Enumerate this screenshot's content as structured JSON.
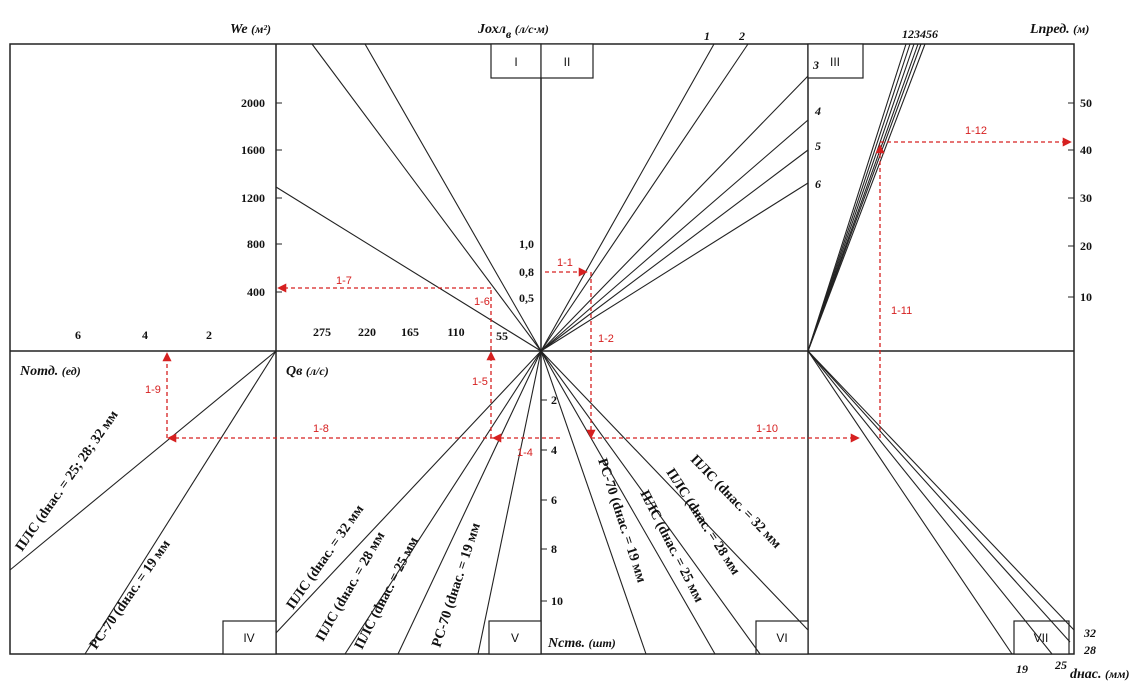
{
  "axes": {
    "We": {
      "text": "We",
      "unit": "(м²)"
    },
    "Joxn": {
      "text": "Jохл",
      "sub": "в",
      "unit": "(л/с·м)"
    },
    "Lpred": {
      "text": "Lпред.",
      "unit": "(м)"
    },
    "Notd": {
      "text": "Nотд.",
      "unit": "(ед)"
    },
    "Qe": {
      "text": "Qв",
      "unit": "(л/с)"
    },
    "Nstv": {
      "text": "Nств.",
      "unit": "(шт)"
    },
    "dnas": {
      "text": "dнас.",
      "unit": "(мм)"
    }
  },
  "quadrants": [
    "I",
    "II",
    "III",
    "IV",
    "V",
    "VI",
    "VII"
  ],
  "ticks": {
    "we": [
      "2000",
      "1600",
      "1200",
      "800",
      "400"
    ],
    "joxn": [
      "1,0",
      "0,8",
      "0,5"
    ],
    "lpred": [
      "50",
      "40",
      "30",
      "20",
      "10"
    ],
    "notd": [
      "6",
      "4",
      "2"
    ],
    "qe": [
      "275",
      "220",
      "165",
      "110",
      "55"
    ],
    "nstv": [
      "2",
      "4",
      "6",
      "8",
      "10"
    ],
    "d_right": [
      "32",
      "28"
    ],
    "d_bottom": [
      "19",
      "25"
    ]
  },
  "line_labels": {
    "q2": [
      "1",
      "2",
      "3",
      "4",
      "5",
      "6"
    ],
    "q3": "123456"
  },
  "curves": {
    "q4a": "ПЛС (dнас. = 25; 28; 32 мм",
    "q4b": "РС-70 (dнас. = 19 мм",
    "q5a": "ПЛС (dнас. = 32 мм",
    "q5b": "ПЛС (dнас. = 28 мм",
    "q5c": "ПЛС (dнас. = 25 мм",
    "q5d": "РС-70 (dнас. = 19 мм",
    "q6a": "РС-70 (dнас. = 19 мм",
    "q6b": "ПЛС (dнас. = 25 мм",
    "q6c": "ПЛС (dнас. = 28 мм",
    "q6d": "ПЛС (dнас. = 32 мм"
  },
  "steps": [
    "1-1",
    "1-2",
    "1-4",
    "1-5",
    "1-6",
    "1-7",
    "1-8",
    "1-9",
    "1-10",
    "1-11",
    "1-12"
  ],
  "colors": {
    "line": "#222222",
    "path": "#d62020"
  }
}
